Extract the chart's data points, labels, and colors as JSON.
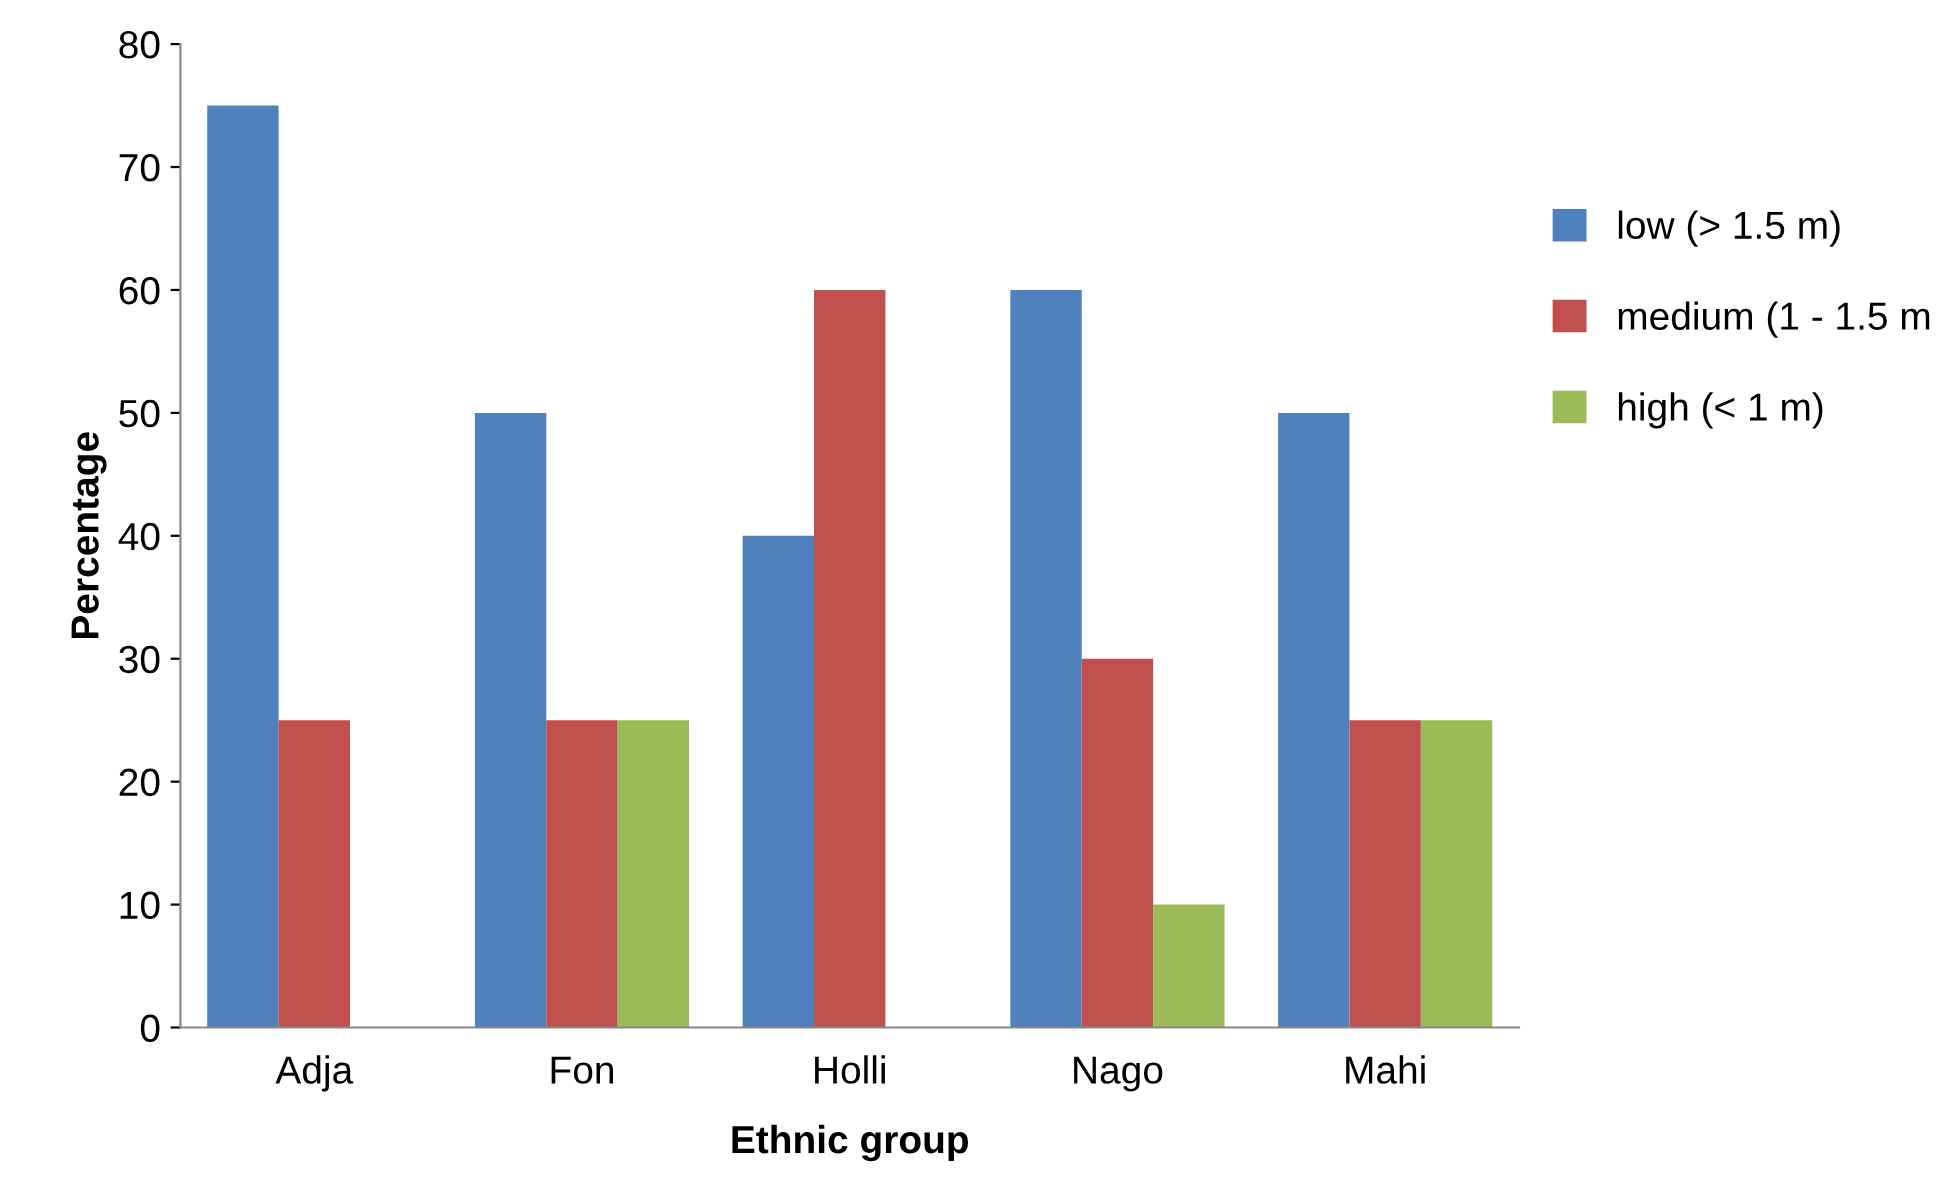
{
  "chart_data": {
    "type": "bar",
    "xlabel": "Ethnic group",
    "ylabel": "Percentage",
    "categories": [
      "Adja",
      "Fon",
      "Holli",
      "Nago",
      "Mahi"
    ],
    "series": [
      {
        "name": "low (> 1.5 m)",
        "color": "#4f81bd",
        "values": [
          75,
          50,
          40,
          60,
          50
        ]
      },
      {
        "name": "medium (1 - 1.5 m",
        "color": "#c0504d",
        "values": [
          25,
          25,
          60,
          30,
          25
        ]
      },
      {
        "name": "high (< 1 m)",
        "color": "#9bbb59",
        "values": [
          0,
          25,
          0,
          10,
          25
        ]
      }
    ],
    "ylim": [
      0,
      80
    ],
    "yticks": [
      0,
      10,
      20,
      30,
      40,
      50,
      60,
      70,
      80
    ],
    "grid": false,
    "legend": "right"
  }
}
